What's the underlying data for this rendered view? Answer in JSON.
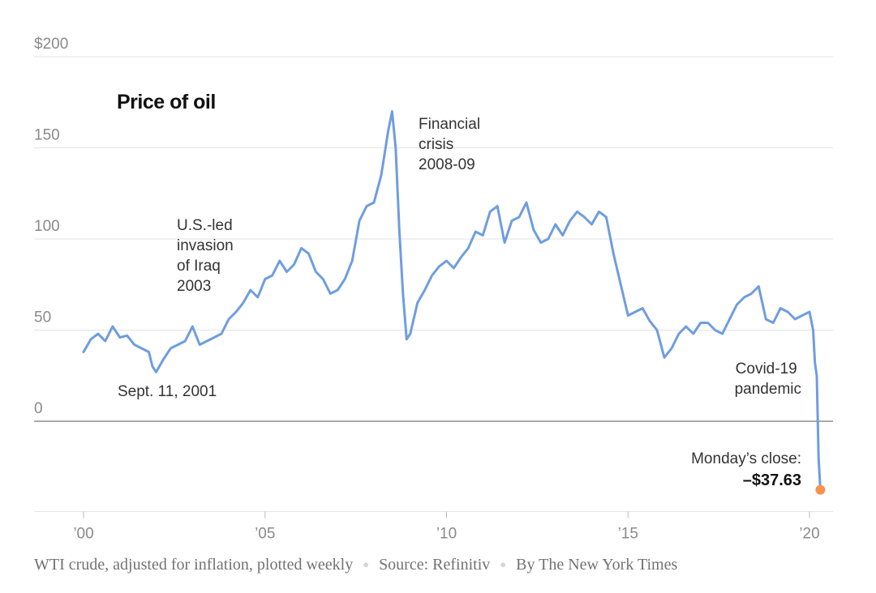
{
  "footer": {
    "note": "WTI crude, adjusted for inflation, plotted weekly",
    "source": "Source: Refinitiv",
    "credit": "By The New York Times"
  },
  "chart_data": {
    "type": "line",
    "title": "Price of oil",
    "xlabel": "",
    "ylabel": "",
    "ylim": [
      -50,
      200
    ],
    "xlim": [
      2000,
      2020.7
    ],
    "grid": true,
    "y_ticks": [
      {
        "value": 200,
        "label": "$200"
      },
      {
        "value": 150,
        "label": "150"
      },
      {
        "value": 100,
        "label": "100"
      },
      {
        "value": 50,
        "label": "50"
      },
      {
        "value": 0,
        "label": "0"
      }
    ],
    "x_ticks": [
      {
        "value": 2000,
        "label": "’00"
      },
      {
        "value": 2005,
        "label": "’05"
      },
      {
        "value": 2010,
        "label": "’10"
      },
      {
        "value": 2015,
        "label": "’15"
      },
      {
        "value": 2020,
        "label": "’20"
      }
    ],
    "colors": {
      "line": "#6f9ddf",
      "endpoint": "#f5924e",
      "grid": "#e3e3e3",
      "zero": "#777777"
    },
    "series": [
      {
        "name": "",
        "x": [
          2000.0,
          2000.2,
          2000.4,
          2000.6,
          2000.8,
          2001.0,
          2001.2,
          2001.4,
          2001.6,
          2001.8,
          2001.9,
          2002.0,
          2002.2,
          2002.4,
          2002.6,
          2002.8,
          2003.0,
          2003.2,
          2003.4,
          2003.6,
          2003.8,
          2004.0,
          2004.2,
          2004.4,
          2004.6,
          2004.8,
          2005.0,
          2005.2,
          2005.4,
          2005.6,
          2005.8,
          2006.0,
          2006.2,
          2006.4,
          2006.6,
          2006.8,
          2007.0,
          2007.2,
          2007.4,
          2007.6,
          2007.8,
          2008.0,
          2008.2,
          2008.4,
          2008.5,
          2008.6,
          2008.7,
          2008.8,
          2008.9,
          2009.0,
          2009.2,
          2009.4,
          2009.6,
          2009.8,
          2010.0,
          2010.2,
          2010.4,
          2010.6,
          2010.8,
          2011.0,
          2011.2,
          2011.4,
          2011.6,
          2011.8,
          2012.0,
          2012.2,
          2012.4,
          2012.6,
          2012.8,
          2013.0,
          2013.2,
          2013.4,
          2013.6,
          2013.8,
          2014.0,
          2014.2,
          2014.4,
          2014.6,
          2014.8,
          2015.0,
          2015.2,
          2015.4,
          2015.6,
          2015.8,
          2016.0,
          2016.2,
          2016.4,
          2016.6,
          2016.8,
          2017.0,
          2017.2,
          2017.4,
          2017.6,
          2017.8,
          2018.0,
          2018.2,
          2018.4,
          2018.6,
          2018.8,
          2019.0,
          2019.2,
          2019.4,
          2019.6,
          2019.8,
          2020.0,
          2020.1,
          2020.15,
          2020.2,
          2020.25,
          2020.3
        ],
        "y": [
          38,
          45,
          48,
          44,
          52,
          46,
          47,
          42,
          40,
          38,
          30,
          27,
          34,
          40,
          42,
          44,
          52,
          42,
          44,
          46,
          48,
          56,
          60,
          65,
          72,
          68,
          78,
          80,
          88,
          82,
          86,
          95,
          92,
          82,
          78,
          70,
          72,
          78,
          88,
          110,
          118,
          120,
          135,
          160,
          170,
          150,
          105,
          70,
          45,
          48,
          65,
          72,
          80,
          85,
          88,
          84,
          90,
          95,
          104,
          102,
          115,
          118,
          98,
          110,
          112,
          120,
          105,
          98,
          100,
          108,
          102,
          110,
          115,
          112,
          108,
          115,
          112,
          92,
          75,
          58,
          60,
          62,
          55,
          50,
          35,
          40,
          48,
          52,
          48,
          54,
          54,
          50,
          48,
          56,
          64,
          68,
          70,
          74,
          56,
          54,
          62,
          60,
          56,
          58,
          60,
          50,
          32,
          25,
          -20,
          -37.63
        ]
      }
    ],
    "annotations": [
      {
        "lines": [
          "U.S.-led",
          "invasion",
          "of Iraq",
          "2003"
        ]
      },
      {
        "lines": [
          "Financial",
          "crisis",
          "2008-09"
        ]
      },
      {
        "lines": [
          "Sept. 11, 2001"
        ]
      },
      {
        "lines": [
          "Covid-19",
          "pandemic"
        ]
      },
      {
        "lines": [
          "Monday’s close:"
        ]
      }
    ],
    "endpoint": {
      "x": 2020.3,
      "y": -37.63,
      "label": "–$37.63"
    }
  }
}
